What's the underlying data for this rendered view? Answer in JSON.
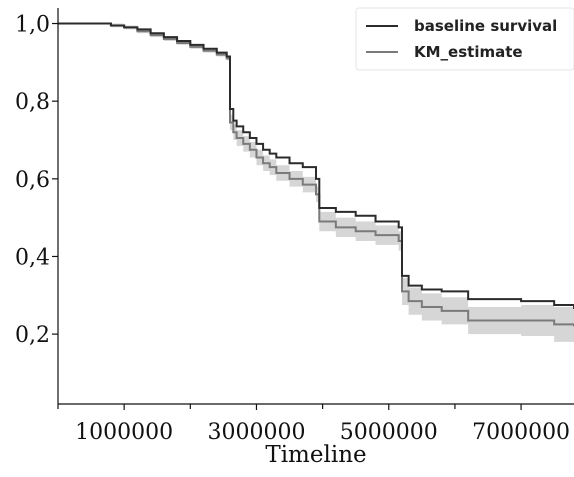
{
  "chart_data": {
    "type": "line",
    "title": "",
    "xlabel": "Timeline",
    "ylabel": "",
    "xlim": [
      0,
      7800000
    ],
    "ylim": [
      0.02,
      1.04
    ],
    "x_ticks": [
      1000000,
      3000000,
      5000000,
      7000000
    ],
    "x_tick_labels": [
      "1000000",
      "3000000",
      "5000000",
      "7000000"
    ],
    "x_minor_ticks": [
      0,
      2000000,
      4000000,
      6000000
    ],
    "y_ticks": [
      0.2,
      0.4,
      0.6,
      0.8,
      1.0
    ],
    "y_tick_labels": [
      "0,2",
      "0,4",
      "0,6",
      "0,8",
      "1,0"
    ],
    "grid": false,
    "legend_position": "top-right",
    "series": [
      {
        "name": "baseline survival",
        "color": "#2b2b2b",
        "step": true,
        "points": [
          [
            0,
            1.0
          ],
          [
            500000,
            1.0
          ],
          [
            800000,
            0.995
          ],
          [
            1000000,
            0.99
          ],
          [
            1200000,
            0.985
          ],
          [
            1400000,
            0.975
          ],
          [
            1600000,
            0.965
          ],
          [
            1800000,
            0.955
          ],
          [
            2000000,
            0.945
          ],
          [
            2200000,
            0.935
          ],
          [
            2400000,
            0.925
          ],
          [
            2550000,
            0.915
          ],
          [
            2600000,
            0.78
          ],
          [
            2650000,
            0.75
          ],
          [
            2700000,
            0.735
          ],
          [
            2800000,
            0.72
          ],
          [
            2900000,
            0.705
          ],
          [
            3000000,
            0.69
          ],
          [
            3100000,
            0.675
          ],
          [
            3200000,
            0.665
          ],
          [
            3300000,
            0.655
          ],
          [
            3500000,
            0.64
          ],
          [
            3700000,
            0.63
          ],
          [
            3900000,
            0.6
          ],
          [
            3950000,
            0.525
          ],
          [
            4200000,
            0.515
          ],
          [
            4500000,
            0.505
          ],
          [
            4800000,
            0.49
          ],
          [
            5150000,
            0.475
          ],
          [
            5200000,
            0.35
          ],
          [
            5300000,
            0.325
          ],
          [
            5500000,
            0.315
          ],
          [
            5800000,
            0.31
          ],
          [
            6200000,
            0.29
          ],
          [
            7000000,
            0.285
          ],
          [
            7500000,
            0.275
          ],
          [
            7800000,
            0.265
          ]
        ]
      },
      {
        "name": "KM_estimate",
        "color": "#7a7a7a",
        "band_color": "#d6d6d6",
        "step": true,
        "points": [
          [
            0,
            1.0
          ],
          [
            500000,
            1.0
          ],
          [
            800000,
            0.995
          ],
          [
            1000000,
            0.99
          ],
          [
            1200000,
            0.98
          ],
          [
            1400000,
            0.97
          ],
          [
            1600000,
            0.96
          ],
          [
            1800000,
            0.95
          ],
          [
            2000000,
            0.94
          ],
          [
            2200000,
            0.93
          ],
          [
            2400000,
            0.92
          ],
          [
            2550000,
            0.91
          ],
          [
            2600000,
            0.745
          ],
          [
            2650000,
            0.72
          ],
          [
            2700000,
            0.705
          ],
          [
            2800000,
            0.69
          ],
          [
            2900000,
            0.675
          ],
          [
            3000000,
            0.655
          ],
          [
            3100000,
            0.64
          ],
          [
            3200000,
            0.63
          ],
          [
            3300000,
            0.615
          ],
          [
            3500000,
            0.6
          ],
          [
            3700000,
            0.585
          ],
          [
            3900000,
            0.56
          ],
          [
            3950000,
            0.49
          ],
          [
            4200000,
            0.475
          ],
          [
            4500000,
            0.465
          ],
          [
            4800000,
            0.455
          ],
          [
            5150000,
            0.44
          ],
          [
            5200000,
            0.31
          ],
          [
            5300000,
            0.285
          ],
          [
            5500000,
            0.27
          ],
          [
            5800000,
            0.26
          ],
          [
            6200000,
            0.235
          ],
          [
            7000000,
            0.235
          ],
          [
            7500000,
            0.225
          ],
          [
            7800000,
            0.22
          ]
        ],
        "band_lower": [
          1.0,
          1.0,
          0.99,
          0.985,
          0.975,
          0.965,
          0.955,
          0.945,
          0.935,
          0.925,
          0.915,
          0.905,
          0.725,
          0.7,
          0.685,
          0.67,
          0.655,
          0.635,
          0.62,
          0.61,
          0.595,
          0.58,
          0.565,
          0.54,
          0.465,
          0.45,
          0.44,
          0.43,
          0.415,
          0.275,
          0.25,
          0.235,
          0.225,
          0.2,
          0.195,
          0.18,
          0.17
        ],
        "band_upper": [
          1.0,
          1.0,
          1.0,
          0.995,
          0.985,
          0.975,
          0.965,
          0.955,
          0.945,
          0.935,
          0.925,
          0.915,
          0.765,
          0.74,
          0.725,
          0.71,
          0.695,
          0.675,
          0.66,
          0.65,
          0.635,
          0.62,
          0.605,
          0.58,
          0.515,
          0.5,
          0.49,
          0.48,
          0.465,
          0.345,
          0.32,
          0.305,
          0.295,
          0.27,
          0.275,
          0.27,
          0.27
        ]
      }
    ]
  }
}
